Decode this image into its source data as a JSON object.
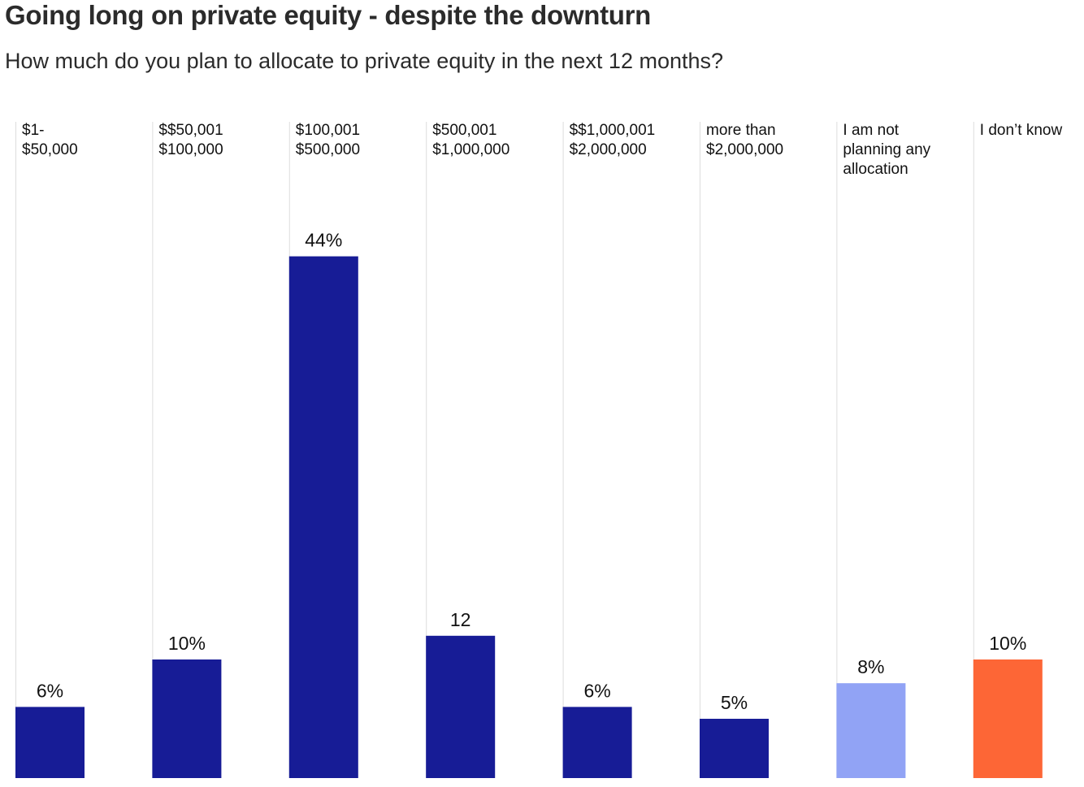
{
  "title": "Going long on private equity - despite the downturn",
  "subtitle": "How much do you plan to allocate to private equity in the next 12 months?",
  "chart_data": {
    "type": "bar",
    "title": "Going long on private equity - despite the downturn",
    "subtitle": "How much do you plan to allocate to private equity in the next 12 months?",
    "xlabel": "",
    "ylabel": "",
    "ylim": [
      0,
      50
    ],
    "grid": false,
    "categories": [
      [
        "$1-",
        "$50,000"
      ],
      [
        "$$50,001",
        "$100,000"
      ],
      [
        "$100,001",
        "$500,000"
      ],
      [
        "$500,001",
        "$1,000,000"
      ],
      [
        "$$1,000,001",
        "$2,000,000"
      ],
      [
        "more than",
        "$2,000,000"
      ],
      [
        "I am not",
        "planning any",
        "allocation"
      ],
      [
        "I don’t know"
      ]
    ],
    "values": [
      6,
      10,
      44,
      12,
      6,
      5,
      8,
      10
    ],
    "value_labels": [
      "6%",
      "10%",
      "44%",
      "12",
      "6%",
      "5%",
      "8%",
      "10%"
    ],
    "colors": [
      "#171c96",
      "#171c96",
      "#171c96",
      "#171c96",
      "#171c96",
      "#171c96",
      "#91a3f5",
      "#fd6636"
    ]
  }
}
